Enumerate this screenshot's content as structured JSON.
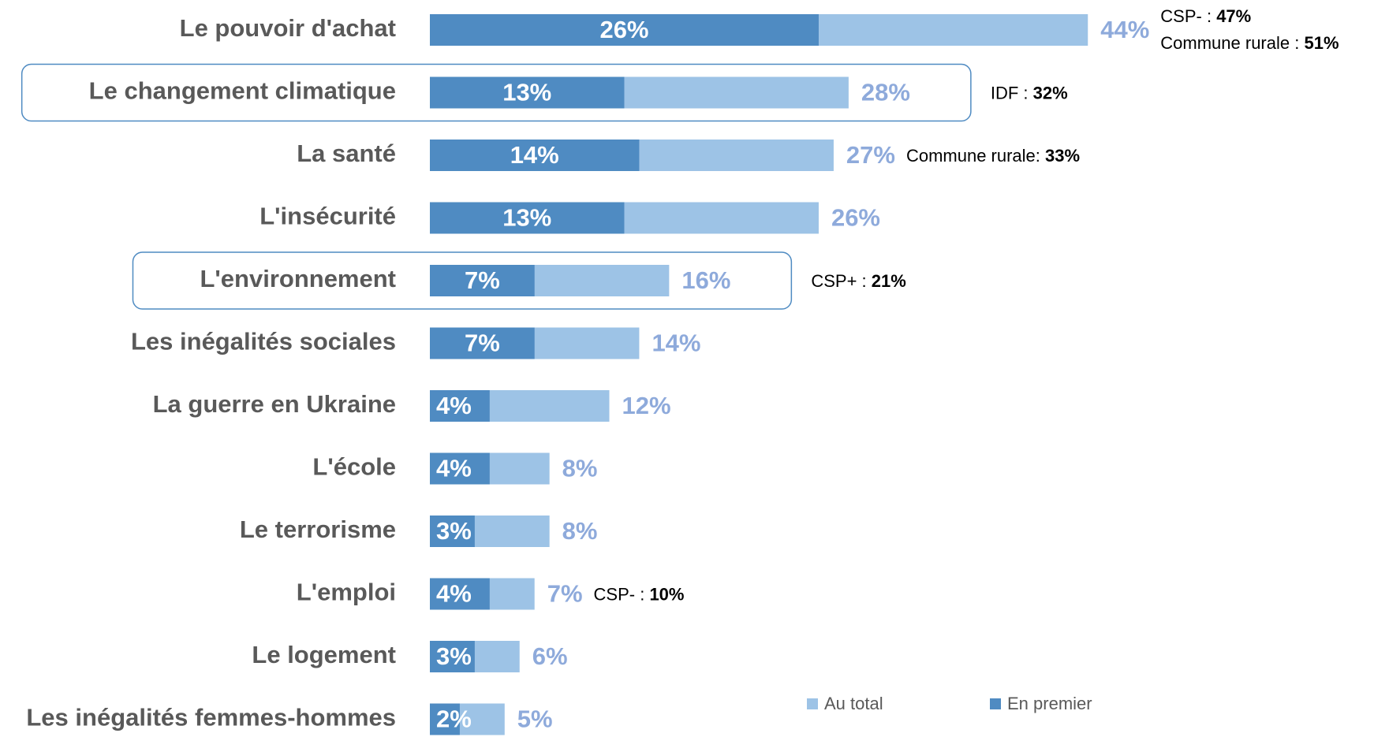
{
  "chart_data": {
    "type": "bar",
    "categories": [
      "Le pouvoir d'achat",
      "Le changement climatique",
      "La santé",
      "L'insécurité",
      "L'environnement",
      "Les inégalités sociales",
      "La guerre en Ukraine",
      "L'école",
      "Le terrorisme",
      "L'emploi",
      "Le logement",
      "Les inégalités femmes-hommes"
    ],
    "series": [
      {
        "name": "Au total",
        "color": "#9dc3e6",
        "values": [
          44,
          28,
          27,
          26,
          16,
          14,
          12,
          8,
          8,
          7,
          6,
          5
        ],
        "value_labels": [
          "44%",
          "28%",
          "27%",
          "26%",
          "16%",
          "14%",
          "12%",
          "8%",
          "8%",
          "7%",
          "6%",
          "5%"
        ]
      },
      {
        "name": "En premier",
        "color": "#4f8bc2",
        "values": [
          26,
          13,
          14,
          13,
          7,
          7,
          4,
          4,
          3,
          4,
          3,
          2
        ],
        "value_labels": [
          "26%",
          "13%",
          "14%",
          "13%",
          "7%",
          "7%",
          "4%",
          "4%",
          "3%",
          "4%",
          "3%",
          "2%"
        ]
      }
    ],
    "annotations": [
      [
        {
          "text": "CSP- : ",
          "bold": "47%"
        },
        {
          "text": "Commune rurale : ",
          "bold": "51%"
        }
      ],
      [
        {
          "text": "IDF : ",
          "bold": "32%"
        }
      ],
      [
        {
          "text": "Commune rurale: ",
          "bold": "33%"
        }
      ],
      null,
      [
        {
          "text": "CSP+ : ",
          "bold": "21%"
        }
      ],
      null,
      null,
      null,
      null,
      [
        {
          "text": "CSP- : ",
          "bold": "10%"
        }
      ],
      null,
      null
    ],
    "highlighted": [
      "Le changement climatique",
      "L'environnement"
    ]
  }
}
